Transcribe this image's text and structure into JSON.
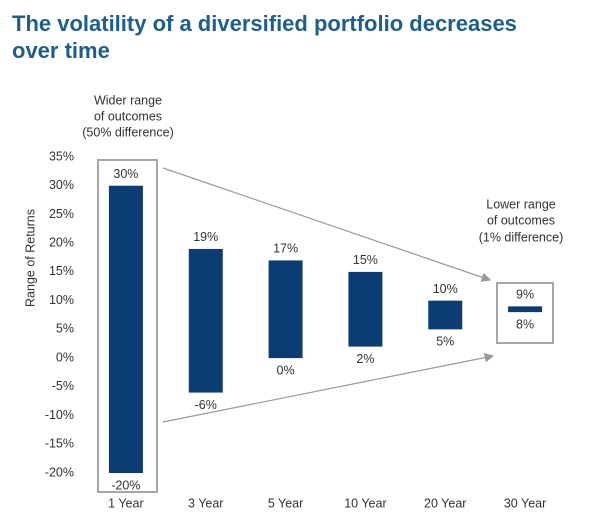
{
  "chart_data": {
    "type": "floatingbar",
    "title": [
      "The volatility of a diversified portfolio decreases",
      "over time"
    ],
    "y_label": "Range of Returns",
    "categories": [
      "1 Year",
      "3 Year",
      "5 Year",
      "10 Year",
      "20 Year",
      "30 Year"
    ],
    "series": [
      {
        "color": "#0c3c74",
        "values": [
          -20,
          -6,
          0,
          2,
          5,
          8
        ],
        "value_labels": [
          "-20%",
          "-6%",
          "0%",
          "2%",
          "5%",
          "8%"
        ]
      },
      {
        "color": "#0c3c74",
        "values": [
          30,
          19,
          17,
          15,
          10,
          9
        ],
        "value_labels": [
          "30%",
          "19%",
          "17%",
          "15%",
          "10%",
          "9%"
        ]
      }
    ],
    "ylim": [
      -20,
      35
    ],
    "yticks": [
      {
        "value": 35,
        "label": "35%"
      },
      {
        "value": 30,
        "label": "30%"
      },
      {
        "value": 25,
        "label": "25%"
      },
      {
        "value": 20,
        "label": "20%"
      },
      {
        "value": 15,
        "label": "15%"
      },
      {
        "value": 10,
        "label": "10%"
      },
      {
        "value": 5,
        "label": "5%"
      },
      {
        "value": 0,
        "label": "0%"
      },
      {
        "value": -5,
        "label": "-5%"
      },
      {
        "value": -10,
        "label": "-10%"
      },
      {
        "value": -15,
        "label": "-15%"
      },
      {
        "value": -20,
        "label": "-20%"
      }
    ],
    "annotations": [
      [
        "Wider range",
        "of outcomes",
        "(50% difference)"
      ],
      [
        "Lower range",
        "of outcomes",
        "(1% difference)"
      ]
    ]
  }
}
